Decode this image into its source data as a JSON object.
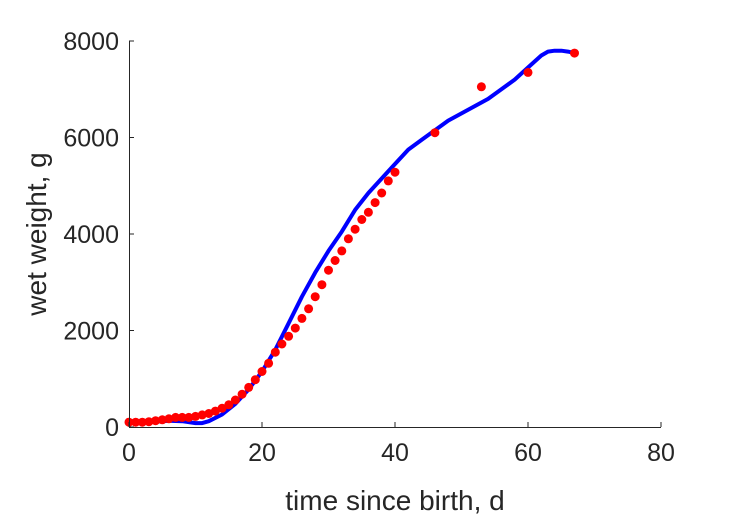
{
  "chart_data": {
    "type": "scatter",
    "title": "",
    "xlabel": "time since birth, d",
    "ylabel": "wet weight, g",
    "xlim": [
      0,
      80
    ],
    "ylim": [
      0,
      8000
    ],
    "xticks": [
      0,
      20,
      40,
      60,
      80
    ],
    "yticks": [
      0,
      2000,
      4000,
      6000,
      8000
    ],
    "xtick_labels": [
      "0",
      "20",
      "40",
      "60",
      "80"
    ],
    "ytick_labels": [
      "0",
      "2000",
      "4000",
      "6000",
      "8000"
    ],
    "grid": false,
    "legend": "none",
    "series": [
      {
        "type": "scatter",
        "color": "#ff0000",
        "x": [
          0,
          1,
          2,
          3,
          4,
          5,
          6,
          7,
          8,
          9,
          10,
          11,
          12,
          13,
          14,
          15,
          16,
          17,
          18,
          19,
          20,
          21,
          22,
          23,
          24,
          25,
          26,
          27,
          28,
          29,
          30,
          31,
          32,
          33,
          34,
          35,
          36,
          37,
          38,
          39,
          40,
          46,
          53,
          60,
          67
        ],
        "y": [
          100,
          100,
          100,
          110,
          130,
          150,
          170,
          200,
          200,
          200,
          220,
          250,
          280,
          330,
          390,
          460,
          560,
          680,
          820,
          980,
          1150,
          1320,
          1550,
          1720,
          1880,
          2050,
          2250,
          2450,
          2700,
          2950,
          3250,
          3450,
          3650,
          3900,
          4100,
          4300,
          4450,
          4650,
          4850,
          5100,
          5280,
          6100,
          7050,
          7350,
          7750
        ]
      },
      {
        "type": "line",
        "color": "#0000ff",
        "x": [
          0,
          2,
          4,
          6,
          8,
          10,
          11,
          12,
          14,
          16,
          18,
          20,
          22,
          24,
          26,
          28,
          30,
          32,
          34,
          36,
          38,
          40,
          42,
          44,
          46,
          48,
          50,
          52,
          54,
          56,
          58,
          60,
          62,
          63,
          64,
          65,
          66,
          67
        ],
        "y": [
          100,
          100,
          110,
          130,
          120,
          80,
          80,
          120,
          260,
          480,
          780,
          1150,
          1600,
          2150,
          2700,
          3200,
          3650,
          4050,
          4500,
          4850,
          5150,
          5450,
          5750,
          5950,
          6150,
          6350,
          6500,
          6650,
          6800,
          7000,
          7200,
          7450,
          7700,
          7780,
          7800,
          7800,
          7780,
          7750
        ]
      }
    ]
  }
}
